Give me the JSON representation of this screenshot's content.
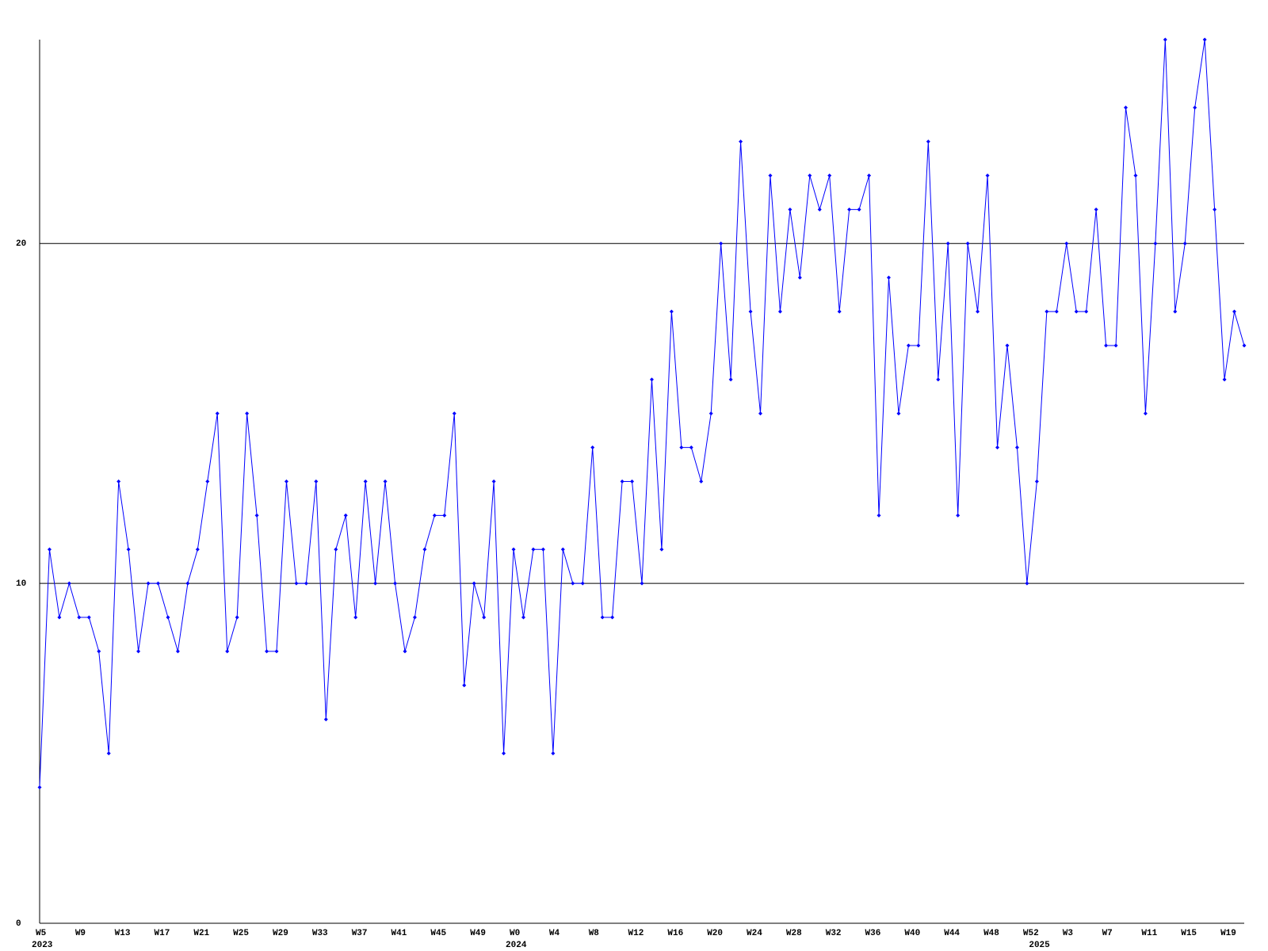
{
  "chart_data": {
    "type": "line",
    "color": "#0000ff",
    "grid": true,
    "ylim": [
      0,
      26
    ],
    "yticks": [
      0,
      10,
      20
    ],
    "categories": [
      "W5",
      null,
      null,
      null,
      "W9",
      null,
      null,
      null,
      "W13",
      null,
      null,
      null,
      "W17",
      null,
      null,
      null,
      "W21",
      null,
      null,
      null,
      "W25",
      null,
      null,
      null,
      "W29",
      null,
      null,
      null,
      "W33",
      null,
      null,
      null,
      "W37",
      null,
      null,
      null,
      "W41",
      null,
      null,
      null,
      "W45",
      null,
      null,
      null,
      "W49",
      null,
      null,
      null,
      "W0",
      null,
      null,
      null,
      "W4",
      null,
      null,
      null,
      "W8",
      null,
      null,
      null,
      "W12",
      null,
      null,
      null,
      "W16",
      null,
      null,
      null,
      "W20",
      null,
      null,
      null,
      "W24",
      null,
      null,
      null,
      "W28",
      null,
      null,
      null,
      "W32",
      null,
      null,
      null,
      "W36",
      null,
      null,
      null,
      "W40",
      null,
      null,
      null,
      "W44",
      null,
      null,
      null,
      "W48",
      null,
      null,
      null,
      "W52",
      null,
      null,
      null,
      "W3",
      null,
      null,
      null,
      "W7",
      null,
      null,
      null,
      "W11",
      null,
      null,
      null,
      "W15",
      null,
      null,
      null,
      "W19",
      null,
      null
    ],
    "category_years": [
      "2023",
      null,
      null,
      null,
      null,
      null,
      null,
      null,
      null,
      null,
      null,
      null,
      null,
      null,
      null,
      null,
      null,
      null,
      null,
      null,
      null,
      null,
      null,
      null,
      null,
      null,
      null,
      null,
      null,
      null,
      null,
      null,
      null,
      null,
      null,
      null,
      null,
      null,
      null,
      null,
      null,
      null,
      null,
      null,
      null,
      null,
      null,
      null,
      "2024",
      null,
      null,
      null,
      null,
      null,
      null,
      null,
      null,
      null,
      null,
      null,
      null,
      null,
      null,
      null,
      null,
      null,
      null,
      null,
      null,
      null,
      null,
      null,
      null,
      null,
      null,
      null,
      null,
      null,
      null,
      null,
      null,
      null,
      null,
      null,
      null,
      null,
      null,
      null,
      null,
      null,
      null,
      null,
      null,
      null,
      null,
      null,
      null,
      null,
      null,
      null,
      null,
      "2025",
      null,
      null,
      null,
      null,
      null,
      null,
      null,
      null,
      null,
      null,
      null,
      null,
      null,
      null,
      null,
      null,
      null,
      null,
      null,
      null,
      null
    ],
    "values": [
      4,
      11,
      9,
      10,
      9,
      9,
      8,
      5,
      13,
      11,
      8,
      10,
      10,
      9,
      8,
      10,
      11,
      13,
      15,
      8,
      9,
      15,
      12,
      8,
      8,
      13,
      10,
      10,
      13,
      6,
      11,
      12,
      9,
      13,
      10,
      13,
      10,
      8,
      9,
      11,
      12,
      12,
      15,
      7,
      10,
      9,
      13,
      5,
      11,
      9,
      11,
      11,
      5,
      11,
      10,
      10,
      14,
      9,
      9,
      13,
      13,
      10,
      16,
      11,
      18,
      14,
      14,
      13,
      15,
      20,
      16,
      23,
      18,
      15,
      22,
      18,
      21,
      19,
      22,
      21,
      22,
      18,
      21,
      21,
      22,
      12,
      19,
      15,
      17,
      17,
      23,
      16,
      20,
      12,
      20,
      18,
      22,
      14,
      17,
      14,
      10,
      13,
      18,
      18,
      20,
      18,
      18,
      21,
      17,
      17,
      24,
      22,
      15,
      20,
      26,
      18,
      20,
      24,
      26,
      21,
      16,
      18,
      17
    ]
  }
}
